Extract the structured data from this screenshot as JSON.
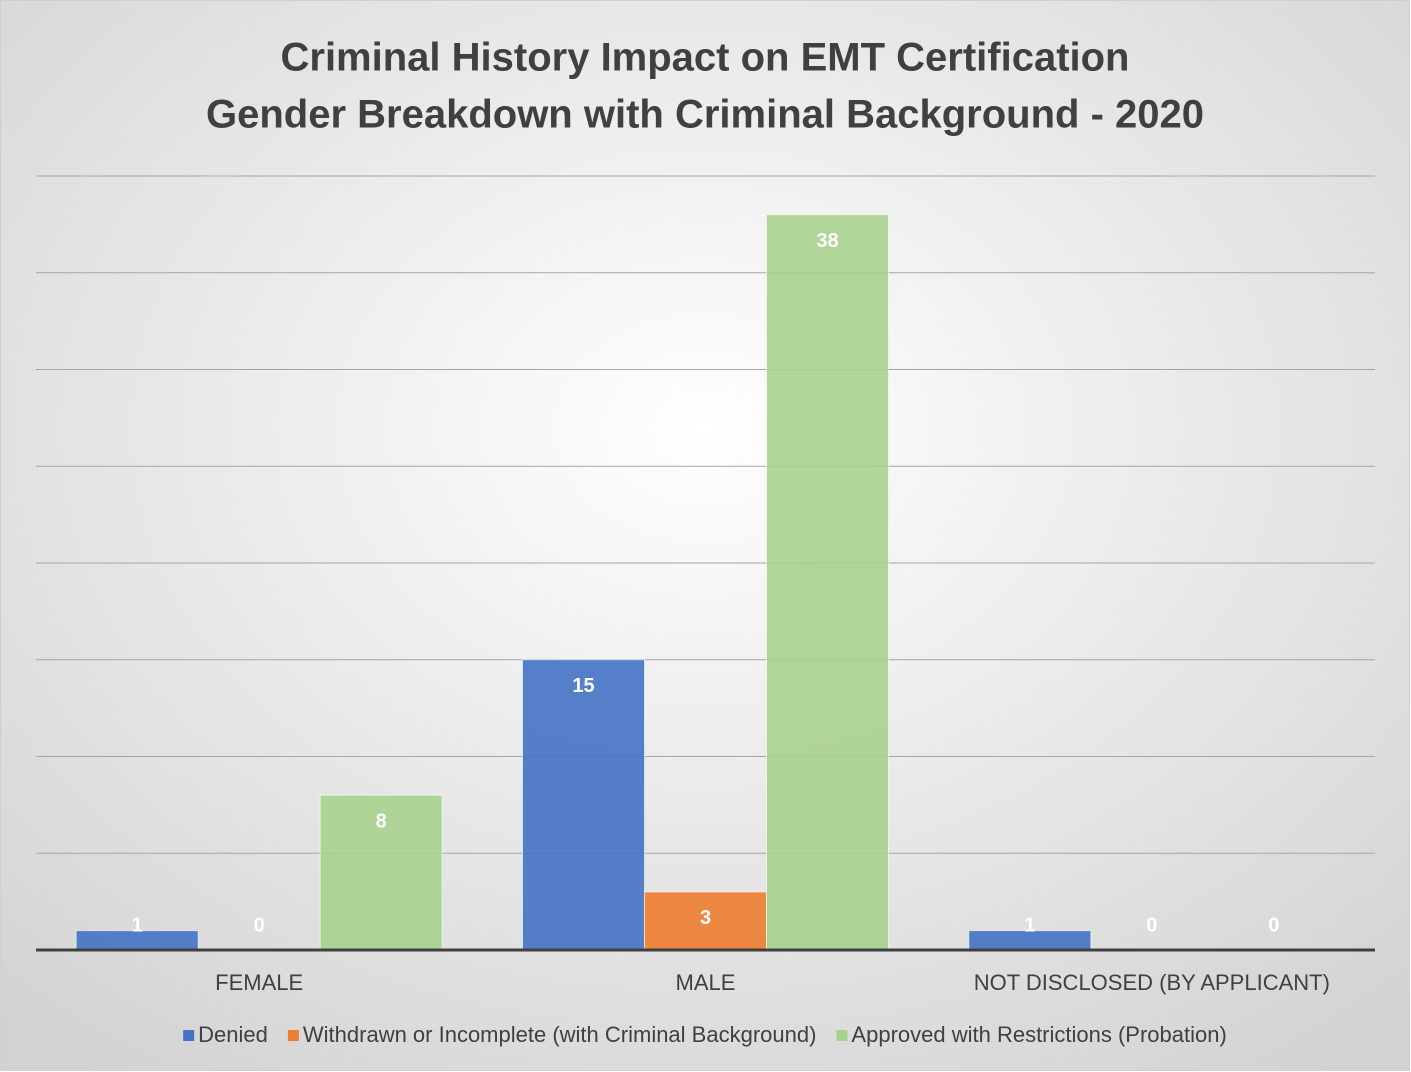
{
  "chart_data": {
    "type": "bar",
    "title": "Criminal History Impact on EMT Certification",
    "subtitle": "Gender Breakdown with Criminal Background - 2020",
    "categories": [
      "FEMALE",
      "MALE",
      "NOT DISCLOSED (BY APPLICANT)"
    ],
    "series": [
      {
        "name": "Denied",
        "color": "#4472c4",
        "values": [
          1,
          15,
          1
        ]
      },
      {
        "name": "Withdrawn or Incomplete (with Criminal Background)",
        "color": "#ed7d31",
        "values": [
          0,
          3,
          0
        ]
      },
      {
        "name": "Approved with Restrictions (Probation)",
        "color": "#a9d18e",
        "values": [
          8,
          38,
          0
        ]
      }
    ],
    "ylim": [
      0,
      40
    ],
    "yticks": [
      0,
      5,
      10,
      15,
      20,
      25,
      30,
      35,
      40
    ],
    "grid": true,
    "legend": "bottom"
  }
}
